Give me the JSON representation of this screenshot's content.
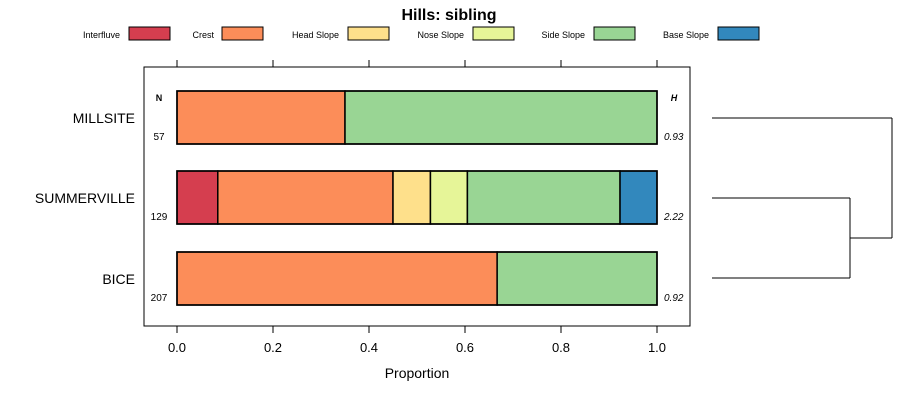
{
  "chart_data": {
    "type": "bar",
    "orientation": "horizontal",
    "stacked": true,
    "title": "Hills: sibling",
    "xlabel": "Proportion",
    "xlim": [
      0,
      1
    ],
    "xticks": [
      "0.0",
      "0.2",
      "0.4",
      "0.6",
      "0.8",
      "1.0"
    ],
    "xtick_values": [
      0,
      0.2,
      0.4,
      0.6,
      0.8,
      1.0
    ],
    "n_header": "N",
    "h_header": "H",
    "legend_position": "top",
    "legend": [
      {
        "name": "Interfluve",
        "color": "#d53e4f"
      },
      {
        "name": "Crest",
        "color": "#fc8d59"
      },
      {
        "name": "Head Slope",
        "color": "#fee08b"
      },
      {
        "name": "Nose Slope",
        "color": "#e6f598"
      },
      {
        "name": "Side Slope",
        "color": "#99d594"
      },
      {
        "name": "Base Slope",
        "color": "#3288bd"
      }
    ],
    "rows": [
      {
        "label": "MILLSITE",
        "n": "57",
        "h": "0.93",
        "values": [
          0,
          0.35,
          0,
          0,
          0.65,
          0
        ]
      },
      {
        "label": "SUMMERVILLE",
        "n": "129",
        "h": "2.22",
        "values": [
          0.085,
          0.365,
          0.078,
          0.077,
          0.318,
          0.077
        ]
      },
      {
        "label": "BICE",
        "n": "207",
        "h": "0.92",
        "values": [
          0,
          0.667,
          0,
          0,
          0.333,
          0
        ]
      }
    ],
    "dendrogram": {
      "merge_order": [
        "SUMMERVILLE",
        "BICE",
        "MILLSITE"
      ]
    }
  }
}
